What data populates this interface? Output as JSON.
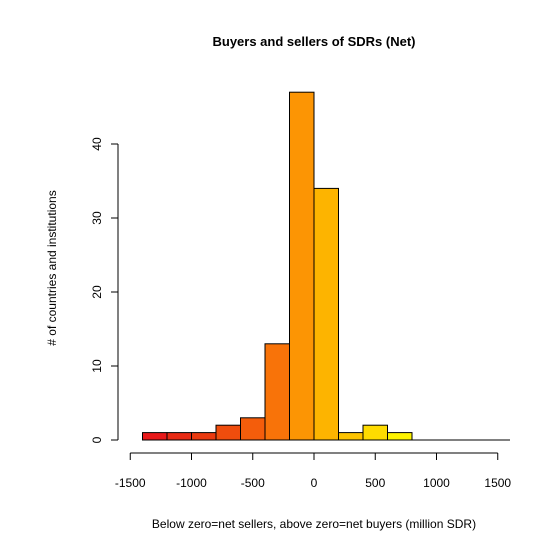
{
  "chart_data": {
    "type": "bar",
    "title": "Buyers and sellers of SDRs (Net)",
    "xlabel": "Below zero=net sellers, above zero=net buyers (million SDR)",
    "ylabel": "# of countries and institutions",
    "xlim": [
      -1500,
      1500
    ],
    "ylim": [
      0,
      47
    ],
    "x_ticks": [
      "-1500",
      "-1000",
      "-500",
      "0",
      "500",
      "1000",
      "1500"
    ],
    "y_ticks": [
      "0",
      "10",
      "20",
      "30",
      "40"
    ],
    "bins": [
      {
        "x0": -1400,
        "x1": -1200,
        "count": 1,
        "color": "#e8191a"
      },
      {
        "x0": -1200,
        "x1": -1000,
        "count": 1,
        "color": "#e82b14"
      },
      {
        "x0": -1000,
        "x1": -800,
        "count": 1,
        "color": "#ea3a10"
      },
      {
        "x0": -800,
        "x1": -600,
        "count": 2,
        "color": "#ef4d0d"
      },
      {
        "x0": -600,
        "x1": -400,
        "count": 3,
        "color": "#f45d0b"
      },
      {
        "x0": -400,
        "x1": -200,
        "count": 13,
        "color": "#f87309"
      },
      {
        "x0": -200,
        "x1": 0,
        "count": 47,
        "color": "#fc9504"
      },
      {
        "x0": 0,
        "x1": 200,
        "count": 34,
        "color": "#fdb400"
      },
      {
        "x0": 200,
        "x1": 400,
        "count": 1,
        "color": "#fdc300"
      },
      {
        "x0": 400,
        "x1": 600,
        "count": 2,
        "color": "#fedb00"
      },
      {
        "x0": 600,
        "x1": 800,
        "count": 1,
        "color": "#fef300"
      },
      {
        "x0": 800,
        "x1": 1000,
        "count": 0,
        "color": "#ffff33"
      },
      {
        "x0": 1000,
        "x1": 1200,
        "count": 0,
        "color": "#ffff33"
      },
      {
        "x0": 1200,
        "x1": 1400,
        "count": 0,
        "color": "#ffff33"
      },
      {
        "x0": 1400,
        "x1": 1600,
        "count": 0,
        "color": "#ffff33"
      }
    ]
  }
}
